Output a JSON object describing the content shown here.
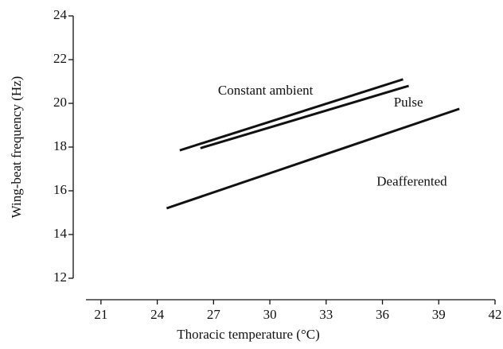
{
  "chart_data": {
    "type": "line",
    "x_label": "Thoracic temperature (°C)",
    "y_label": "Wing-beat frequency (Hz)",
    "series": [
      {
        "name": "Constant ambient",
        "color": "#111111",
        "x": [
          25.2,
          37.1
        ],
        "values": [
          17.85,
          21.1
        ]
      },
      {
        "name": "Pulse",
        "color": "#111111",
        "x": [
          26.3,
          37.4
        ],
        "values": [
          17.95,
          20.8
        ]
      },
      {
        "name": "Deafferented",
        "color": "#111111",
        "x": [
          24.5,
          40.1
        ],
        "values": [
          15.2,
          19.75
        ]
      }
    ],
    "xlim": [
      20.2,
      42
    ],
    "xticks": [
      21,
      24,
      27,
      30,
      33,
      36,
      39,
      42
    ],
    "ylim": [
      12,
      24
    ],
    "yticks": [
      12,
      14,
      16,
      18,
      20,
      22,
      24
    ],
    "grid": false
  }
}
